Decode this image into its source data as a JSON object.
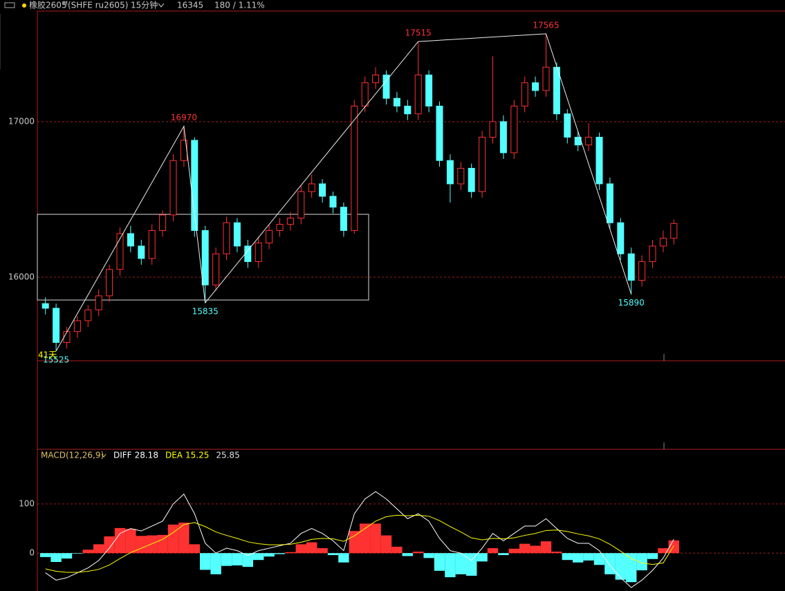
{
  "header": {
    "symbol": "橡胶2605",
    "flag": "M",
    "code": "(SHFE ru2605)",
    "period": "15分钟",
    "change": "180 / 1.11%"
  },
  "chart_data": [
    {
      "type": "candlestick",
      "open": [
        15830,
        15800,
        15580,
        15650,
        15720,
        15790,
        15880,
        16050,
        16280,
        16200,
        16120,
        16300,
        16400,
        16750,
        16880,
        16300,
        15950,
        16150,
        16350,
        16200,
        16100,
        16220,
        16300,
        16340,
        16380,
        16550,
        16600,
        16520,
        16450,
        16300,
        17100,
        17250,
        17300,
        17150,
        17100,
        17050,
        17300,
        17100,
        16750,
        16600,
        16700,
        16550,
        16900,
        17000,
        16800,
        17100,
        17250,
        17200,
        17350,
        17050,
        16900,
        16850,
        16900,
        16600,
        16350,
        16150,
        15980,
        16100,
        16200,
        16250
      ],
      "high": [
        15870,
        15830,
        15680,
        15750,
        15820,
        15920,
        16080,
        16320,
        16330,
        16240,
        16340,
        16430,
        16790,
        16970,
        16900,
        16330,
        16190,
        16390,
        16380,
        16240,
        16260,
        16340,
        16380,
        16420,
        16590,
        16660,
        16630,
        16550,
        16480,
        17140,
        17290,
        17350,
        17330,
        17190,
        17140,
        17515,
        17330,
        17130,
        16790,
        16740,
        16730,
        16940,
        17420,
        17040,
        17140,
        17290,
        17290,
        17565,
        17380,
        17080,
        16940,
        16990,
        16930,
        16640,
        16380,
        16190,
        16140,
        16240,
        16300,
        16370
      ],
      "low": [
        15760,
        15525,
        15540,
        15610,
        15680,
        15750,
        15840,
        16010,
        16160,
        16080,
        16080,
        16260,
        16360,
        16710,
        16260,
        15835,
        15910,
        16110,
        16160,
        16060,
        16060,
        16180,
        16260,
        16300,
        16340,
        16510,
        16480,
        16410,
        16260,
        16280,
        17060,
        17210,
        17110,
        17060,
        17010,
        17010,
        17060,
        16710,
        16480,
        16560,
        16510,
        16510,
        16860,
        16760,
        16760,
        17060,
        17160,
        17160,
        17010,
        16860,
        16810,
        16810,
        16560,
        16310,
        16110,
        15890,
        15940,
        16060,
        16160,
        16210
      ],
      "close": [
        15800,
        15580,
        15650,
        15720,
        15790,
        15880,
        16050,
        16280,
        16200,
        16120,
        16300,
        16400,
        16750,
        16880,
        16300,
        15950,
        16150,
        16350,
        16200,
        16100,
        16220,
        16300,
        16340,
        16380,
        16550,
        16600,
        16520,
        16450,
        16300,
        17100,
        17250,
        17300,
        17150,
        17100,
        17050,
        17300,
        17100,
        16750,
        16600,
        16700,
        16550,
        16900,
        17000,
        16800,
        17100,
        17250,
        17200,
        17350,
        17050,
        16900,
        16850,
        16900,
        16600,
        16350,
        16150,
        15980,
        16100,
        16200,
        16250,
        16345
      ],
      "up_color": "#ff3232",
      "down_color": "#54ffff",
      "ylim": [
        15462,
        17711
      ],
      "yticks": [
        16000,
        17000
      ],
      "grid": true,
      "pivots": [
        {
          "candle": 1,
          "value": 15525
        },
        {
          "candle": 13,
          "value": 16970
        },
        {
          "candle": 15,
          "value": 15835
        },
        {
          "candle": 35,
          "value": 17515
        },
        {
          "candle": 47,
          "value": 17565
        },
        {
          "candle": 55,
          "value": 15890
        }
      ],
      "range_box": [
        15853,
        16404
      ],
      "duration_label": "41天"
    },
    {
      "type": "macd",
      "title": "MACD(12,26,9)",
      "series": [
        {
          "name": "DIFF",
          "color": "#ffffff",
          "values": [
            -40,
            -55,
            -50,
            -40,
            -30,
            -15,
            10,
            40,
            50,
            45,
            55,
            65,
            100,
            120,
            80,
            20,
            0,
            10,
            5,
            -5,
            5,
            10,
            15,
            20,
            40,
            50,
            40,
            25,
            5,
            80,
            110,
            125,
            110,
            90,
            70,
            80,
            65,
            30,
            5,
            0,
            -15,
            10,
            40,
            25,
            40,
            55,
            55,
            70,
            50,
            30,
            20,
            20,
            5,
            -25,
            -50,
            -70,
            -55,
            -35,
            -10,
            28.18
          ]
        },
        {
          "name": "DEA",
          "color": "#ffff00",
          "values": [
            -32,
            -37,
            -39,
            -39,
            -37,
            -33,
            -24,
            -11,
            1,
            10,
            19,
            28,
            42,
            58,
            62,
            54,
            43,
            36,
            30,
            23,
            19,
            17,
            17,
            18,
            22,
            28,
            30,
            29,
            24,
            35,
            50,
            65,
            74,
            77,
            76,
            77,
            75,
            66,
            54,
            43,
            31,
            27,
            30,
            29,
            31,
            36,
            40,
            46,
            47,
            44,
            39,
            35,
            29,
            18,
            4,
            -11,
            -20,
            -23,
            -20,
            15.25
          ]
        }
      ],
      "histogram": {
        "values": [
          -8,
          -18,
          -11,
          -1,
          7,
          18,
          34,
          51,
          49,
          35,
          36,
          37,
          58,
          62,
          18,
          -34,
          -43,
          -26,
          -25,
          -28,
          -14,
          -7,
          -2,
          2,
          18,
          22,
          10,
          -4,
          -19,
          45,
          60,
          60,
          36,
          13,
          -6,
          3,
          -10,
          -36,
          -49,
          -43,
          -46,
          -17,
          10,
          -4,
          9,
          19,
          15,
          24,
          3,
          -14,
          -19,
          -15,
          -24,
          -43,
          -54,
          -59,
          -35,
          -12,
          10,
          25.85
        ],
        "up_color": "#ff3232",
        "down_color": "#54ffff"
      },
      "ylim": [
        -77,
        211
      ],
      "yticks": [
        0,
        100
      ],
      "grid": true
    }
  ]
}
